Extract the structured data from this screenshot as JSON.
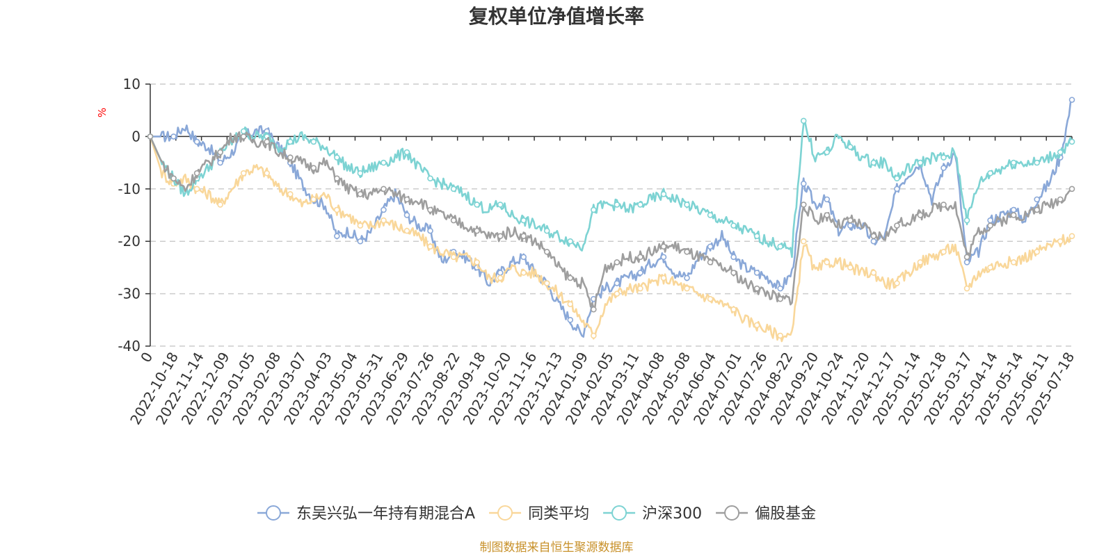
{
  "chart_data": {
    "type": "line",
    "title": "复权单位净值增长率",
    "ylabel": "%",
    "ylim": [
      -40,
      10
    ],
    "yticks": [
      "10",
      "0",
      "-10",
      "-20",
      "-30",
      "-40"
    ],
    "xticks": [
      "0",
      "2022-10-18",
      "2022-11-14",
      "2022-12-09",
      "2023-01-05",
      "2023-02-08",
      "2023-03-07",
      "2023-04-03",
      "2023-05-04",
      "2023-05-31",
      "2023-06-29",
      "2023-07-26",
      "2023-08-22",
      "2023-09-18",
      "2023-10-20",
      "2023-11-16",
      "2023-12-13",
      "2024-01-09",
      "2024-02-05",
      "2024-03-11",
      "2024-04-08",
      "2024-05-08",
      "2024-06-04",
      "2024-07-01",
      "2024-07-26",
      "2024-08-22",
      "2024-09-20",
      "2024-10-24",
      "2024-11-20",
      "2024-12-17",
      "2025-01-14",
      "2025-02-18",
      "2025-03-17",
      "2025-04-14",
      "2025-05-14",
      "2025-06-11",
      "2025-07-18"
    ],
    "grid": "horizontal dashed",
    "legend_position": "bottom",
    "series": [
      {
        "name": "东吴兴弘一年持有期混合A",
        "color": "#8aa8d8",
        "values": [
          0,
          0,
          0,
          2,
          -1,
          -2,
          -5,
          -3,
          0,
          1,
          1,
          -2,
          -5,
          -9,
          -12,
          -13,
          -19,
          -18,
          -20,
          -18,
          -14,
          -11,
          -15,
          -17,
          -18,
          -24,
          -22,
          -23,
          -25,
          -28,
          -26,
          -24,
          -23,
          -26,
          -28,
          -32,
          -35,
          -38,
          -31,
          -29,
          -28,
          -27,
          -26,
          -24,
          -23,
          -26,
          -27,
          -23,
          -21,
          -19,
          -23,
          -25,
          -26,
          -27,
          -29,
          -26,
          -9,
          -13,
          -12,
          -18,
          -17,
          -17,
          -20,
          -19,
          -10,
          -7,
          -5,
          -12,
          -6,
          -3,
          -24,
          -22,
          -16,
          -15,
          -14,
          -16,
          -12,
          -9,
          -4,
          7
        ]
      },
      {
        "name": "同类平均",
        "color": "#f9d79a",
        "values": [
          0,
          -7,
          -9,
          -8,
          -10,
          -11,
          -13,
          -10,
          -7,
          -6,
          -7,
          -10,
          -11,
          -13,
          -12,
          -11,
          -14,
          -15,
          -17,
          -17,
          -16,
          -17,
          -18,
          -19,
          -21,
          -22,
          -23,
          -23,
          -24,
          -27,
          -27,
          -25,
          -26,
          -26,
          -28,
          -30,
          -32,
          -35,
          -38,
          -32,
          -30,
          -29,
          -29,
          -28,
          -27,
          -28,
          -29,
          -30,
          -31,
          -32,
          -33,
          -35,
          -36,
          -37,
          -38,
          -38,
          -20,
          -26,
          -24,
          -24,
          -25,
          -26,
          -26,
          -28,
          -28,
          -26,
          -24,
          -23,
          -22,
          -21,
          -29,
          -26,
          -25,
          -24,
          -24,
          -23,
          -22,
          -21,
          -20,
          -19
        ]
      },
      {
        "name": "沪深300",
        "color": "#7dd3d3",
        "values": [
          0,
          -5,
          -8,
          -11,
          -8,
          -6,
          -3,
          -1,
          1,
          0,
          0,
          -2,
          -1,
          0,
          -1,
          -2,
          -4,
          -6,
          -7,
          -6,
          -5,
          -4,
          -3,
          -6,
          -8,
          -9,
          -10,
          -11,
          -13,
          -14,
          -13,
          -15,
          -16,
          -17,
          -18,
          -19,
          -20,
          -21,
          -14,
          -13,
          -13,
          -14,
          -13,
          -12,
          -11,
          -12,
          -13,
          -14,
          -15,
          -16,
          -17,
          -18,
          -19,
          -20,
          -21,
          -22,
          3,
          -4,
          -3,
          0,
          -2,
          -4,
          -5,
          -5,
          -8,
          -6,
          -5,
          -4,
          -4,
          -3,
          -16,
          -9,
          -7,
          -6,
          -5,
          -5,
          -5,
          -4,
          -3,
          -1
        ]
      },
      {
        "name": "偏股基金",
        "color": "#9e9e9e",
        "values": [
          0,
          -5,
          -8,
          -10,
          -7,
          -5,
          -3,
          0,
          0,
          -1,
          -1,
          -3,
          -4,
          -5,
          -6,
          -5,
          -8,
          -10,
          -11,
          -11,
          -10,
          -11,
          -12,
          -12,
          -14,
          -15,
          -16,
          -17,
          -18,
          -19,
          -19,
          -18,
          -19,
          -20,
          -22,
          -25,
          -27,
          -28,
          -33,
          -25,
          -24,
          -23,
          -23,
          -22,
          -21,
          -21,
          -22,
          -23,
          -24,
          -25,
          -26,
          -28,
          -29,
          -30,
          -31,
          -31,
          -13,
          -16,
          -15,
          -17,
          -16,
          -17,
          -19,
          -19,
          -17,
          -16,
          -15,
          -14,
          -13,
          -13,
          -23,
          -18,
          -17,
          -16,
          -15,
          -15,
          -14,
          -13,
          -12,
          -10
        ]
      }
    ]
  },
  "source": "制图数据来自恒生聚源数据库"
}
